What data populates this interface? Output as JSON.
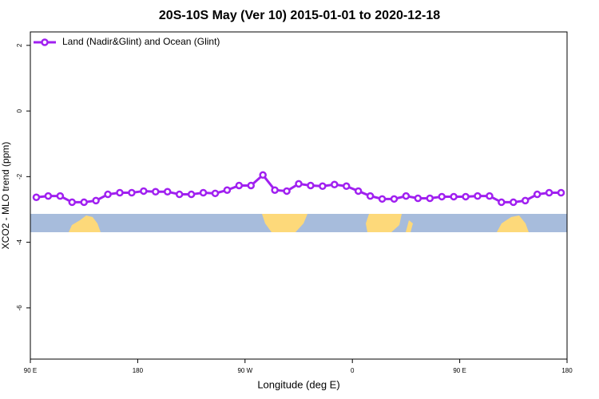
{
  "chart_data": {
    "type": "line",
    "title": "20S-10S May (Ver 10)   2015-01-01 to 2020-12-18",
    "x_label": "Longitude (deg E)",
    "y_label": "XCO2 - MLO trend (ppm)",
    "legend_position": "top-left",
    "x": [
      95,
      105,
      115,
      125,
      135,
      145,
      155,
      165,
      175,
      185,
      195,
      205,
      215,
      225,
      235,
      245,
      255,
      265,
      275,
      285,
      295,
      305,
      315,
      325,
      335,
      345,
      355,
      365,
      375,
      385,
      395,
      405,
      415,
      425,
      435,
      445,
      455,
      465,
      475,
      485,
      495,
      505,
      515,
      525,
      535
    ],
    "series": [
      {
        "name": "Land (Nadir&Glint) and Ocean (Glint)",
        "color": "#a020f0",
        "values": [
          -2.63,
          -2.59,
          -2.59,
          -2.78,
          -2.78,
          -2.73,
          -2.54,
          -2.49,
          -2.49,
          -2.44,
          -2.46,
          -2.46,
          -2.54,
          -2.54,
          -2.49,
          -2.51,
          -2.41,
          -2.27,
          -2.27,
          -1.95,
          -2.41,
          -2.44,
          -2.22,
          -2.27,
          -2.29,
          -2.24,
          -2.29,
          -2.44,
          -2.59,
          -2.68,
          -2.68,
          -2.59,
          -2.66,
          -2.66,
          -2.61,
          -2.61,
          -2.61,
          -2.59,
          -2.59,
          -2.78,
          -2.78,
          -2.73,
          -2.54,
          -2.49,
          -2.49
        ]
      }
    ],
    "xlim": [
      90,
      540
    ],
    "xticks": [
      {
        "value": 90,
        "label": "90 E"
      },
      180,
      {
        "value": 270,
        "label": "90 W"
      },
      {
        "value": 360,
        "label": "0"
      },
      {
        "value": 450,
        "label": "90 E"
      },
      {
        "value": 540,
        "label": "180"
      }
    ],
    "ylim": [
      -7.56,
      2.41
    ],
    "yticks": [
      2,
      0,
      -2,
      -4,
      -6
    ]
  }
}
